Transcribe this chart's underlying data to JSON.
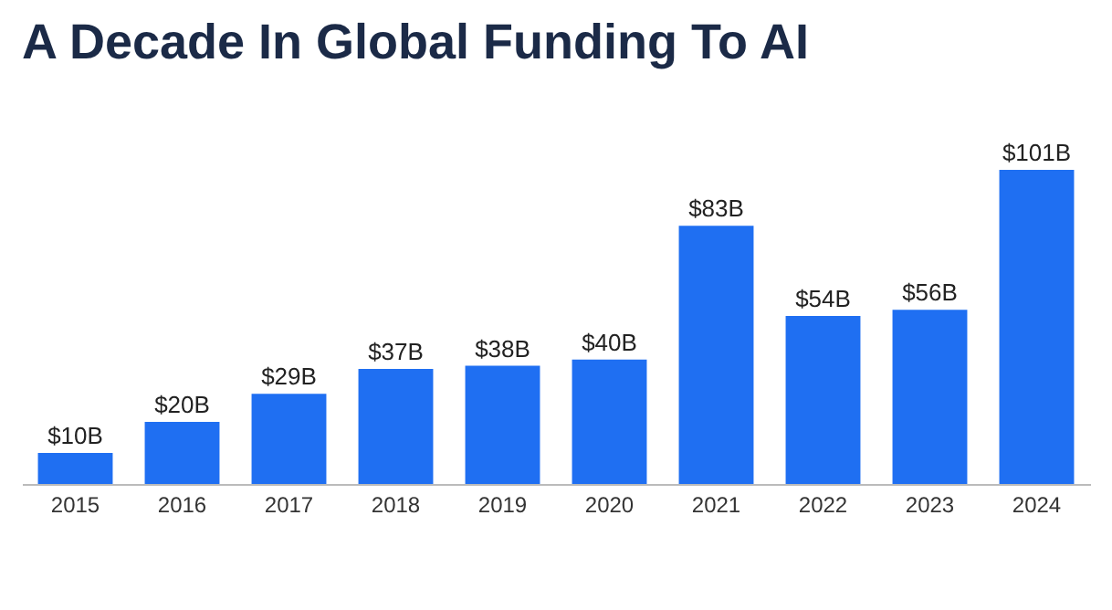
{
  "chart_data": {
    "type": "bar",
    "title": "A Decade In Global Funding To AI",
    "categories": [
      "2015",
      "2016",
      "2017",
      "2018",
      "2019",
      "2020",
      "2021",
      "2022",
      "2023",
      "2024"
    ],
    "values": [
      10,
      20,
      29,
      37,
      38,
      40,
      83,
      54,
      56,
      101
    ],
    "value_labels": [
      "$10B",
      "$20B",
      "$29B",
      "$37B",
      "$38B",
      "$40B",
      "$83B",
      "$54B",
      "$56B",
      "$101B"
    ],
    "color": "#1f6ff2",
    "grid": false
  }
}
